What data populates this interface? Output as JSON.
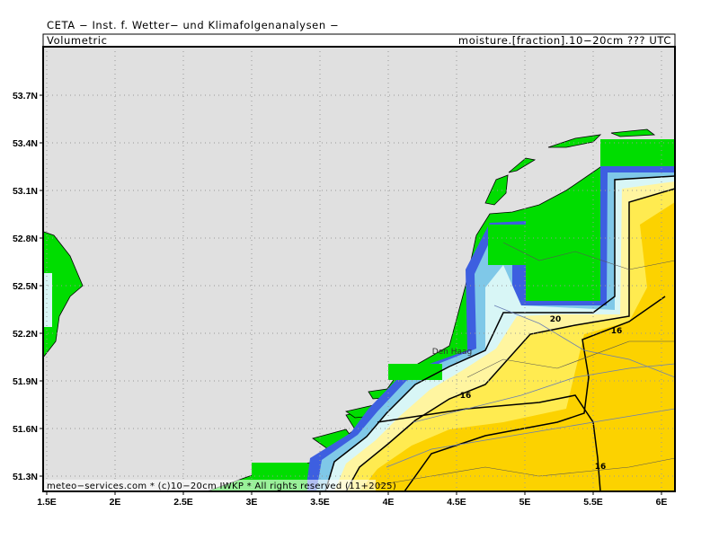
{
  "header": {
    "title": "CETA − Inst. f. Wetter− und Klimafolgenanalysen −",
    "left_label": "Volumetric",
    "right_label": "moisture.[fraction].10−20cm ??? UTC"
  },
  "map": {
    "lon_ticks": [
      {
        "value": 1.5,
        "label": "1.5E"
      },
      {
        "value": 2,
        "label": "2E"
      },
      {
        "value": 2.5,
        "label": "2.5E"
      },
      {
        "value": 3,
        "label": "3E"
      },
      {
        "value": 3.5,
        "label": "3.5E"
      },
      {
        "value": 4,
        "label": "4E"
      },
      {
        "value": 4.5,
        "label": "4.5E"
      },
      {
        "value": 5,
        "label": "5E"
      },
      {
        "value": 5.5,
        "label": "5.5E"
      },
      {
        "value": 6,
        "label": "6E"
      }
    ],
    "lat_ticks": [
      {
        "value": 53.7,
        "label": "53.7N"
      },
      {
        "value": 53.4,
        "label": "53.4N"
      },
      {
        "value": 53.1,
        "label": "53.1N"
      },
      {
        "value": 52.8,
        "label": "52.8N"
      },
      {
        "value": 52.5,
        "label": "52.5N"
      },
      {
        "value": 52.2,
        "label": "52.2N"
      },
      {
        "value": 51.9,
        "label": "51.9N"
      },
      {
        "value": 51.6,
        "label": "51.6N"
      },
      {
        "value": 51.3,
        "label": "51.3N"
      }
    ],
    "city": "Den Haag",
    "contour_labels": [
      "20",
      "16",
      "16",
      "16"
    ],
    "footer": "meteo−services.com * (c)10−20cm IWKP * All rights reserved (11+2025)"
  }
}
